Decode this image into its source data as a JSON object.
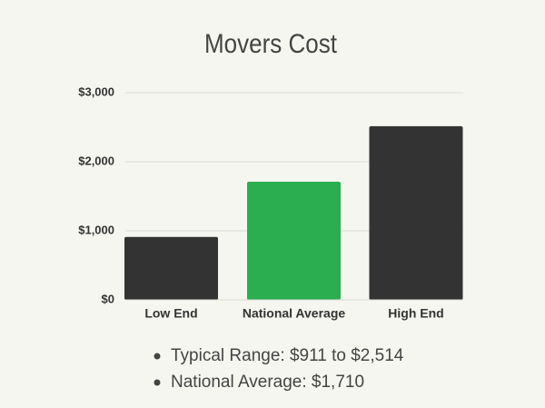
{
  "chart_data": {
    "type": "bar",
    "title": "Movers Cost",
    "categories": [
      "Low End",
      "National Average",
      "High End"
    ],
    "values": [
      911,
      1710,
      2514
    ],
    "colors": [
      "#333333",
      "#2aae4f",
      "#333333"
    ],
    "ylim": [
      0,
      3000
    ],
    "yticks": [
      {
        "value": 0,
        "label": "$0"
      },
      {
        "value": 1000,
        "label": "$1,000"
      },
      {
        "value": 2000,
        "label": "$2,000"
      },
      {
        "value": 3000,
        "label": "$3,000"
      }
    ],
    "grid": true,
    "notes": [
      "Typical Range: $911 to $2,514",
      "National Average: $1,710"
    ]
  }
}
